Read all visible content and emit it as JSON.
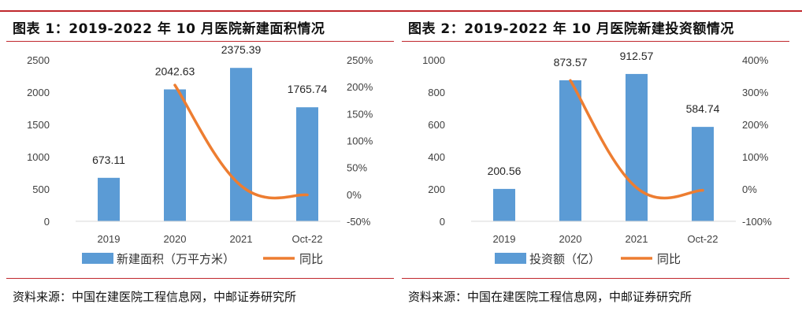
{
  "charts": [
    {
      "title": "图表 1：2019-2022 年 10 月医院新建面积情况",
      "source": "资料来源：中国在建医院工程信息网，中邮证券研究所",
      "bar_color": "#5b9bd5",
      "line_color": "#ed7d31",
      "left_ticks": [
        "2500",
        "2000",
        "1500",
        "1000",
        "500",
        "0"
      ],
      "right_ticks": [
        "250%",
        "200%",
        "150%",
        "100%",
        "50%",
        "0%",
        "-50%"
      ],
      "legend": {
        "bar": "新建面积（万平方米）",
        "line": "同比"
      }
    },
    {
      "title": "图表 2：2019-2022 年 10 月医院新建投资额情况",
      "source": "资料来源：中国在建医院工程信息网，中邮证券研究所",
      "bar_color": "#5b9bd5",
      "line_color": "#ed7d31",
      "left_ticks": [
        "1000",
        "800",
        "600",
        "400",
        "200",
        "0"
      ],
      "right_ticks": [
        "400%",
        "300%",
        "200%",
        "100%",
        "0%",
        "-100%"
      ],
      "legend": {
        "bar": "投资额（亿）",
        "line": "同比"
      }
    }
  ],
  "chart_data": [
    {
      "type": "bar",
      "title": "图表 1：2019-2022 年 10 月医院新建面积情况",
      "categories": [
        "2019",
        "2020",
        "2021",
        "Oct-22"
      ],
      "series": [
        {
          "name": "新建面积（万平方米）",
          "type": "bar",
          "axis": "left",
          "values": [
            673.11,
            2042.63,
            2375.39,
            1765.74
          ],
          "labels": [
            "673.11",
            "2042.63",
            "2375.39",
            "1765.74"
          ]
        },
        {
          "name": "同比",
          "type": "line",
          "axis": "right",
          "values": [
            null,
            2.03,
            0.16,
            -0.01
          ]
        }
      ],
      "ylim_left": [
        0,
        2500
      ],
      "ylim_right": [
        -0.5,
        2.5
      ],
      "legend_position": "bottom"
    },
    {
      "type": "bar",
      "title": "图表 2：2019-2022 年 10 月医院新建投资额情况",
      "categories": [
        "2019",
        "2020",
        "2021",
        "Oct-22"
      ],
      "series": [
        {
          "name": "投资额（亿）",
          "type": "bar",
          "axis": "left",
          "values": [
            200.56,
            873.57,
            912.57,
            584.74
          ],
          "labels": [
            "200.56",
            "873.57",
            "912.57",
            "584.74"
          ]
        },
        {
          "name": "同比",
          "type": "line",
          "axis": "right",
          "values": [
            null,
            3.36,
            0.04,
            -0.04
          ]
        }
      ],
      "ylim_left": [
        0,
        1000
      ],
      "ylim_right": [
        -1,
        4
      ],
      "legend_position": "bottom"
    }
  ]
}
